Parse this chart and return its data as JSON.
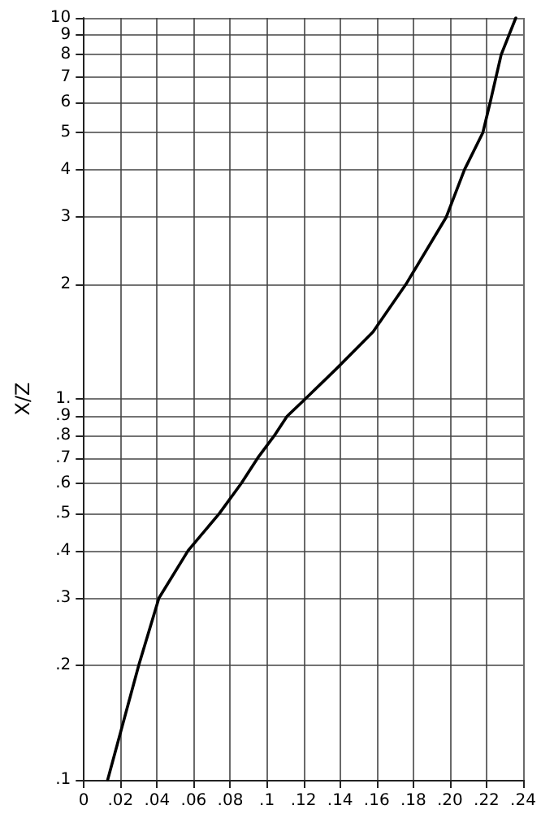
{
  "chart_data": {
    "type": "line",
    "ylabel": "X/Z",
    "log": "y",
    "grid": true,
    "marker": "none",
    "line_style": "solid",
    "xlim": [
      0,
      0.24
    ],
    "xticks": [
      0,
      {
        "value": 0.02,
        "label": ".02"
      },
      {
        "value": 0.04,
        "label": ".04"
      },
      {
        "value": 0.06,
        "label": ".06"
      },
      {
        "value": 0.08,
        "label": ".08"
      },
      {
        "value": 0.1,
        "label": ".1"
      },
      {
        "value": 0.12,
        "label": ".12"
      },
      {
        "value": 0.14,
        "label": ".14"
      },
      {
        "value": 0.16,
        "label": ".16"
      },
      {
        "value": 0.18,
        "label": ".18"
      },
      {
        "value": 0.2,
        "label": ".20"
      },
      {
        "value": 0.22,
        "label": ".22"
      },
      {
        "value": 0.24,
        "label": ".24"
      }
    ],
    "ylim": [
      0.1,
      10
    ],
    "yticks": [
      {
        "value": 0.1,
        "label": ".1"
      },
      {
        "value": 0.2,
        "label": ".2"
      },
      {
        "value": 0.3,
        "label": ".3"
      },
      {
        "value": 0.4,
        "label": ".4"
      },
      {
        "value": 0.5,
        "label": ".5"
      },
      {
        "value": 0.6,
        "label": ".6"
      },
      {
        "value": 0.7,
        "label": ".7"
      },
      {
        "value": 0.8,
        "label": ".8"
      },
      {
        "value": 0.9,
        "label": ".9"
      },
      {
        "value": 1,
        "label": "1."
      },
      2,
      3,
      4,
      5,
      6,
      7,
      8,
      9,
      10
    ],
    "series": [
      {
        "color": "#000000",
        "x": [
          0.013,
          0.03,
          0.041,
          0.057,
          0.074,
          0.086,
          0.095,
          0.104,
          0.111,
          0.121,
          0.138,
          0.158,
          0.176,
          0.198,
          0.208,
          0.218,
          0.222,
          0.228,
          0.236
        ],
        "values": [
          0.1,
          0.2,
          0.3,
          0.4,
          0.5,
          0.6,
          0.7,
          0.8,
          0.9,
          1,
          1.2,
          1.5,
          2,
          3,
          4,
          5,
          6,
          8,
          10
        ]
      }
    ]
  }
}
